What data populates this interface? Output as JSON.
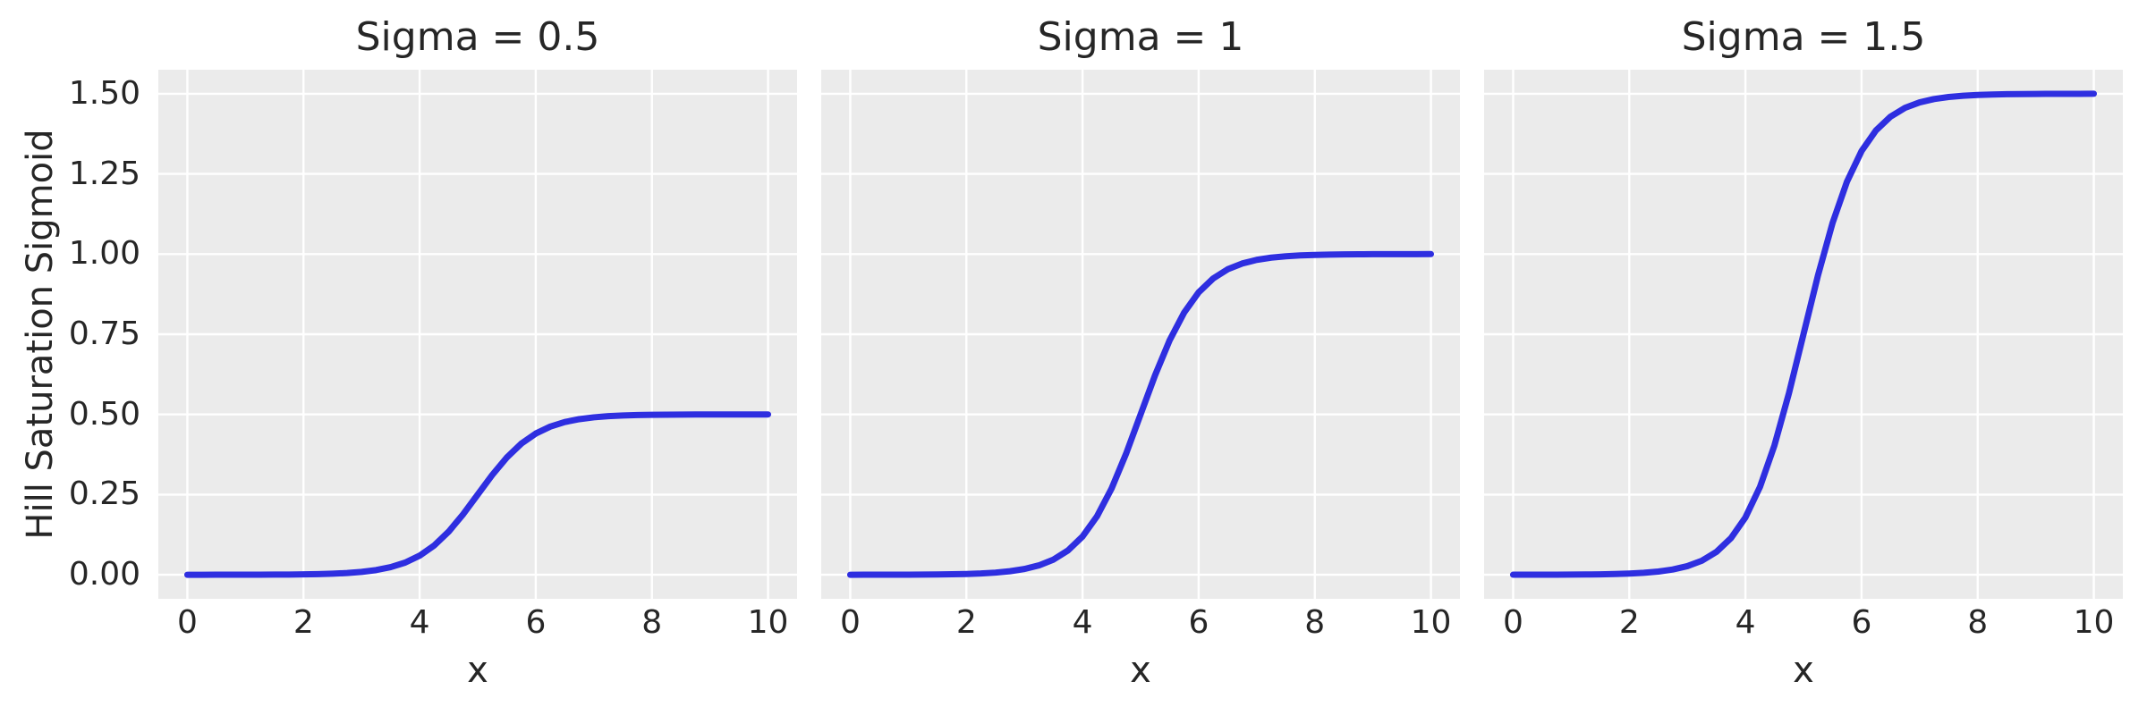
{
  "figure": {
    "background": "#ffffff",
    "axes_background": "#ebebeb",
    "grid_color": "#ffffff",
    "text_color": "#262626"
  },
  "chart_data": [
    {
      "type": "line",
      "title": "Sigma = 0.5",
      "xlabel": "x",
      "ylabel": "Hill Saturation Sigmoid",
      "sigma": 0.5,
      "line_color": "#2e2ee0",
      "grid": true,
      "legend": false,
      "xlim": [
        -0.5,
        10.5
      ],
      "ylim": [
        -0.075,
        1.575
      ],
      "xticks": [
        0,
        2,
        4,
        6,
        8,
        10
      ],
      "xtick_labels": [
        "0",
        "2",
        "4",
        "6",
        "8",
        "10"
      ],
      "yticks": [
        0,
        0.25,
        0.5,
        0.75,
        1.0,
        1.25,
        1.5
      ],
      "ytick_labels": [
        "0.00",
        "0.25",
        "0.50",
        "0.75",
        "1.00",
        "1.25",
        "1.50"
      ],
      "x": [
        0,
        0.25,
        0.5,
        0.75,
        1,
        1.25,
        1.5,
        1.75,
        2,
        2.25,
        2.5,
        2.75,
        3,
        3.25,
        3.5,
        3.75,
        4,
        4.25,
        4.5,
        4.75,
        5,
        5.25,
        5.5,
        5.75,
        6,
        6.25,
        6.5,
        6.75,
        7,
        7.25,
        7.5,
        7.75,
        8,
        8.25,
        8.5,
        8.75,
        9,
        9.25,
        9.5,
        9.75,
        10
      ],
      "values": [
        0,
        0,
        0.0001,
        0.0001,
        0.0002,
        0.0003,
        0.0005,
        0.0007,
        0.0012,
        0.002,
        0.0034,
        0.0055,
        0.009,
        0.0146,
        0.0237,
        0.0379,
        0.0596,
        0.0912,
        0.1345,
        0.1888,
        0.25,
        0.3112,
        0.3655,
        0.4088,
        0.4404,
        0.4621,
        0.4763,
        0.4853,
        0.491,
        0.4945,
        0.4967,
        0.498,
        0.4988,
        0.4993,
        0.4996,
        0.4997,
        0.4998,
        0.4999,
        0.4999,
        0.5,
        0.5
      ]
    },
    {
      "type": "line",
      "title": "Sigma = 1",
      "xlabel": "x",
      "ylabel": "",
      "sigma": 1,
      "line_color": "#2e2ee0",
      "grid": true,
      "legend": false,
      "xlim": [
        -0.5,
        10.5
      ],
      "ylim": [
        -0.075,
        1.575
      ],
      "xticks": [
        0,
        2,
        4,
        6,
        8,
        10
      ],
      "xtick_labels": [
        "0",
        "2",
        "4",
        "6",
        "8",
        "10"
      ],
      "yticks": [
        0,
        0.25,
        0.5,
        0.75,
        1.0,
        1.25,
        1.5
      ],
      "ytick_labels": [],
      "x": [
        0,
        0.25,
        0.5,
        0.75,
        1,
        1.25,
        1.5,
        1.75,
        2,
        2.25,
        2.5,
        2.75,
        3,
        3.25,
        3.5,
        3.75,
        4,
        4.25,
        4.5,
        4.75,
        5,
        5.25,
        5.5,
        5.75,
        6,
        6.25,
        6.5,
        6.75,
        7,
        7.25,
        7.5,
        7.75,
        8,
        8.25,
        8.5,
        8.75,
        9,
        9.25,
        9.5,
        9.75,
        10
      ],
      "values": [
        0,
        0.0001,
        0.0001,
        0.0002,
        0.0003,
        0.0006,
        0.0009,
        0.0015,
        0.0025,
        0.0041,
        0.0067,
        0.011,
        0.018,
        0.0293,
        0.0474,
        0.0759,
        0.1192,
        0.1824,
        0.2689,
        0.3775,
        0.5,
        0.6225,
        0.7311,
        0.8176,
        0.8808,
        0.9241,
        0.9526,
        0.9707,
        0.982,
        0.989,
        0.9933,
        0.9959,
        0.9975,
        0.9985,
        0.9991,
        0.9994,
        0.9997,
        0.9998,
        0.9999,
        0.9999,
        1
      ]
    },
    {
      "type": "line",
      "title": "Sigma = 1.5",
      "xlabel": "x",
      "ylabel": "",
      "sigma": 1.5,
      "line_color": "#2e2ee0",
      "grid": true,
      "legend": false,
      "xlim": [
        -0.5,
        10.5
      ],
      "ylim": [
        -0.075,
        1.575
      ],
      "xticks": [
        0,
        2,
        4,
        6,
        8,
        10
      ],
      "xtick_labels": [
        "0",
        "2",
        "4",
        "6",
        "8",
        "10"
      ],
      "yticks": [
        0,
        0.25,
        0.5,
        0.75,
        1.0,
        1.25,
        1.5
      ],
      "ytick_labels": [],
      "x": [
        0,
        0.25,
        0.5,
        0.75,
        1,
        1.25,
        1.5,
        1.75,
        2,
        2.25,
        2.5,
        2.75,
        3,
        3.25,
        3.5,
        3.75,
        4,
        4.25,
        4.5,
        4.75,
        5,
        5.25,
        5.5,
        5.75,
        6,
        6.25,
        6.5,
        6.75,
        7,
        7.25,
        7.5,
        7.75,
        8,
        8.25,
        8.5,
        8.75,
        9,
        9.25,
        9.5,
        9.75,
        10
      ],
      "values": [
        0.0001,
        0.0001,
        0.0002,
        0.0003,
        0.0005,
        0.0008,
        0.0014,
        0.0022,
        0.0037,
        0.0061,
        0.01,
        0.0164,
        0.0269,
        0.0439,
        0.0712,
        0.1139,
        0.1788,
        0.2736,
        0.4034,
        0.5663,
        0.75,
        0.9337,
        1.0966,
        1.2264,
        1.3212,
        1.3861,
        1.4288,
        1.4561,
        1.4731,
        1.4836,
        1.49,
        1.4939,
        1.4963,
        1.4978,
        1.4986,
        1.4992,
        1.4995,
        1.4997,
        1.4998,
        1.4999,
        1.5
      ]
    }
  ]
}
